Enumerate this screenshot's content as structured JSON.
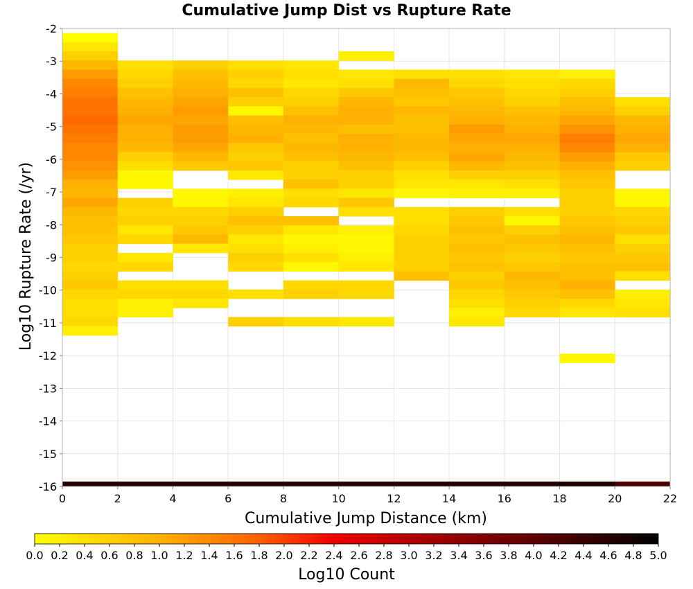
{
  "chart_data": {
    "type": "heatmap",
    "title": "Cumulative Jump Dist vs Rupture Rate",
    "xlabel": "Cumulative Jump Distance (km)",
    "ylabel": "Log10 Rupture Rate (/yr)",
    "colorbar_label": "Log10 Count",
    "xlim": [
      0,
      22
    ],
    "ylim": [
      -16,
      -2
    ],
    "x_ticks": [
      "0",
      "2",
      "4",
      "6",
      "8",
      "10",
      "12",
      "14",
      "16",
      "18",
      "20",
      "22"
    ],
    "y_ticks": [
      "-2",
      "-3",
      "-4",
      "-5",
      "-6",
      "-7",
      "-8",
      "-9",
      "-10",
      "-11",
      "-12",
      "-13",
      "-14",
      "-15",
      "-16"
    ],
    "colorbar_ticks": [
      "0.0",
      "0.2",
      "0.4",
      "0.6",
      "0.8",
      "1.0",
      "1.2",
      "1.4",
      "1.6",
      "1.8",
      "2.0",
      "2.2",
      "2.4",
      "2.6",
      "2.8",
      "3.0",
      "3.2",
      "3.4",
      "3.6",
      "3.8",
      "4.0",
      "4.2",
      "4.4",
      "4.6",
      "4.8",
      "5.0"
    ],
    "zlim": [
      0,
      5
    ],
    "grid": true,
    "x_bin_width": 2,
    "y_bin_height": 0.28,
    "columns": [
      {
        "x0": 0,
        "cells": [
          [
            -2.42,
            0.0
          ],
          [
            -2.7,
            0.3
          ],
          [
            -2.98,
            0.6
          ],
          [
            -3.26,
            0.9
          ],
          [
            -3.54,
            1.2
          ],
          [
            -3.82,
            1.4
          ],
          [
            -4.1,
            1.5
          ],
          [
            -4.38,
            1.6
          ],
          [
            -4.66,
            1.6
          ],
          [
            -4.94,
            1.7
          ],
          [
            -5.22,
            1.6
          ],
          [
            -5.5,
            1.5
          ],
          [
            -5.78,
            1.4
          ],
          [
            -6.06,
            1.4
          ],
          [
            -6.34,
            1.3
          ],
          [
            -6.62,
            1.2
          ],
          [
            -6.9,
            1.0
          ],
          [
            -7.18,
            0.9
          ],
          [
            -7.46,
            1.1
          ],
          [
            -7.74,
            0.9
          ],
          [
            -8.02,
            0.8
          ],
          [
            -8.3,
            0.8
          ],
          [
            -8.58,
            0.7
          ],
          [
            -8.86,
            0.6
          ],
          [
            -9.14,
            0.6
          ],
          [
            -9.42,
            0.5
          ],
          [
            -9.7,
            0.6
          ],
          [
            -9.98,
            0.7
          ],
          [
            -10.26,
            0.5
          ],
          [
            -10.54,
            0.4
          ],
          [
            -10.82,
            0.4
          ],
          [
            -11.1,
            0.5
          ],
          [
            -11.38,
            0.2
          ]
        ]
      },
      {
        "x0": 2,
        "cells": [
          [
            -3.26,
            0.4
          ],
          [
            -3.54,
            0.5
          ],
          [
            -3.82,
            0.6
          ],
          [
            -4.1,
            0.8
          ],
          [
            -4.38,
            0.9
          ],
          [
            -4.66,
            1.0
          ],
          [
            -4.94,
            1.1
          ],
          [
            -5.22,
            1.0
          ],
          [
            -5.5,
            1.0
          ],
          [
            -5.78,
            0.9
          ],
          [
            -6.06,
            0.6
          ],
          [
            -6.34,
            0.4
          ],
          [
            -6.62,
            0.1
          ],
          [
            -6.9,
            0.1
          ],
          [
            -7.46,
            0.6
          ],
          [
            -7.74,
            0.5
          ],
          [
            -8.02,
            0.6
          ],
          [
            -8.3,
            0.3
          ],
          [
            -8.58,
            0.5
          ],
          [
            -9.14,
            0.3
          ],
          [
            -9.42,
            0.5
          ],
          [
            -9.98,
            0.4
          ],
          [
            -10.26,
            0.5
          ],
          [
            -10.54,
            0.2
          ],
          [
            -10.82,
            0.2
          ]
        ]
      },
      {
        "x0": 4,
        "cells": [
          [
            -3.26,
            0.6
          ],
          [
            -3.54,
            0.8
          ],
          [
            -3.82,
            0.9
          ],
          [
            -4.1,
            1.0
          ],
          [
            -4.38,
            1.1
          ],
          [
            -4.66,
            1.2
          ],
          [
            -4.94,
            1.1
          ],
          [
            -5.22,
            1.2
          ],
          [
            -5.5,
            1.2
          ],
          [
            -5.78,
            1.1
          ],
          [
            -6.06,
            0.9
          ],
          [
            -6.34,
            0.7
          ],
          [
            -7.18,
            0.1
          ],
          [
            -7.46,
            0.1
          ],
          [
            -7.74,
            0.5
          ],
          [
            -8.02,
            0.6
          ],
          [
            -8.3,
            0.7
          ],
          [
            -8.58,
            0.9
          ],
          [
            -8.86,
            0.3
          ],
          [
            -9.98,
            0.4
          ],
          [
            -10.26,
            0.5
          ],
          [
            -10.54,
            0.3
          ]
        ]
      },
      {
        "x0": 6,
        "cells": [
          [
            -3.26,
            0.4
          ],
          [
            -3.54,
            0.6
          ],
          [
            -3.82,
            0.5
          ],
          [
            -4.1,
            0.8
          ],
          [
            -4.38,
            0.6
          ],
          [
            -4.66,
            0.1
          ],
          [
            -4.94,
            0.8
          ],
          [
            -5.22,
            0.9
          ],
          [
            -5.5,
            1.0
          ],
          [
            -5.78,
            0.7
          ],
          [
            -6.06,
            0.6
          ],
          [
            -6.34,
            0.7
          ],
          [
            -6.62,
            0.3
          ],
          [
            -7.18,
            0.2
          ],
          [
            -7.46,
            0.3
          ],
          [
            -7.74,
            0.6
          ],
          [
            -8.02,
            0.8
          ],
          [
            -8.3,
            0.6
          ],
          [
            -8.58,
            0.3
          ],
          [
            -8.86,
            0.4
          ],
          [
            -9.14,
            0.6
          ],
          [
            -9.42,
            0.5
          ],
          [
            -10.26,
            0.4
          ],
          [
            -11.1,
            0.6
          ]
        ]
      },
      {
        "x0": 8,
        "cells": [
          [
            -3.26,
            0.3
          ],
          [
            -3.54,
            0.4
          ],
          [
            -3.82,
            0.3
          ],
          [
            -4.1,
            0.5
          ],
          [
            -4.38,
            0.6
          ],
          [
            -4.66,
            0.8
          ],
          [
            -4.94,
            1.0
          ],
          [
            -5.22,
            0.9
          ],
          [
            -5.5,
            0.8
          ],
          [
            -5.78,
            0.9
          ],
          [
            -6.06,
            0.8
          ],
          [
            -6.34,
            0.6
          ],
          [
            -6.62,
            0.6
          ],
          [
            -6.9,
            0.8
          ],
          [
            -7.18,
            0.4
          ],
          [
            -7.46,
            0.5
          ],
          [
            -8.02,
            0.8
          ],
          [
            -8.3,
            0.3
          ],
          [
            -8.58,
            0.1
          ],
          [
            -8.86,
            0.2
          ],
          [
            -9.14,
            0.4
          ],
          [
            -9.42,
            0.1
          ],
          [
            -9.98,
            0.5
          ],
          [
            -10.26,
            0.6
          ],
          [
            -11.1,
            0.4
          ]
        ]
      },
      {
        "x0": 10,
        "cells": [
          [
            -2.98,
            0.2
          ],
          [
            -3.54,
            0.3
          ],
          [
            -3.82,
            0.4
          ],
          [
            -4.1,
            0.7
          ],
          [
            -4.38,
            0.9
          ],
          [
            -4.66,
            1.0
          ],
          [
            -4.94,
            1.0
          ],
          [
            -5.22,
            0.8
          ],
          [
            -5.5,
            1.0
          ],
          [
            -5.78,
            1.0
          ],
          [
            -6.06,
            0.9
          ],
          [
            -6.34,
            0.8
          ],
          [
            -6.62,
            0.6
          ],
          [
            -6.9,
            0.6
          ],
          [
            -7.18,
            0.3
          ],
          [
            -7.46,
            0.7
          ],
          [
            -7.74,
            0.4
          ],
          [
            -8.3,
            0.2
          ],
          [
            -8.58,
            0.1
          ],
          [
            -8.86,
            0.1
          ],
          [
            -9.14,
            0.2
          ],
          [
            -9.42,
            0.3
          ],
          [
            -9.98,
            0.5
          ],
          [
            -10.26,
            0.5
          ],
          [
            -11.1,
            0.3
          ]
        ]
      },
      {
        "x0": 12,
        "cells": [
          [
            -3.54,
            0.4
          ],
          [
            -3.82,
            0.9
          ],
          [
            -4.1,
            0.8
          ],
          [
            -4.38,
            0.7
          ],
          [
            -4.66,
            0.9
          ],
          [
            -4.94,
            0.8
          ],
          [
            -5.22,
            0.8
          ],
          [
            -5.5,
            0.9
          ],
          [
            -5.78,
            0.9
          ],
          [
            -6.06,
            0.8
          ],
          [
            -6.34,
            0.6
          ],
          [
            -6.62,
            0.4
          ],
          [
            -6.9,
            0.3
          ],
          [
            -7.18,
            0.1
          ],
          [
            -7.74,
            0.4
          ],
          [
            -8.02,
            0.4
          ],
          [
            -8.3,
            0.5
          ],
          [
            -8.58,
            0.6
          ],
          [
            -8.86,
            0.6
          ],
          [
            -9.14,
            0.6
          ],
          [
            -9.42,
            0.6
          ],
          [
            -9.7,
            0.8
          ]
        ]
      },
      {
        "x0": 14,
        "cells": [
          [
            -3.54,
            0.4
          ],
          [
            -3.82,
            0.5
          ],
          [
            -4.1,
            0.7
          ],
          [
            -4.38,
            0.8
          ],
          [
            -4.66,
            0.9
          ],
          [
            -4.94,
            1.0
          ],
          [
            -5.22,
            1.2
          ],
          [
            -5.5,
            1.1
          ],
          [
            -5.78,
            1.0
          ],
          [
            -6.06,
            1.1
          ],
          [
            -6.34,
            0.9
          ],
          [
            -6.62,
            0.6
          ],
          [
            -6.9,
            0.3
          ],
          [
            -7.18,
            0.2
          ],
          [
            -7.74,
            0.6
          ],
          [
            -8.02,
            0.7
          ],
          [
            -8.3,
            0.8
          ],
          [
            -8.58,
            0.7
          ],
          [
            -8.86,
            0.8
          ],
          [
            -9.14,
            0.7
          ],
          [
            -9.42,
            0.8
          ],
          [
            -9.7,
            0.6
          ],
          [
            -9.98,
            0.7
          ],
          [
            -10.26,
            0.5
          ],
          [
            -10.54,
            0.4
          ],
          [
            -10.82,
            0.2
          ],
          [
            -11.1,
            0.3
          ]
        ]
      },
      {
        "x0": 16,
        "cells": [
          [
            -3.54,
            0.3
          ],
          [
            -3.82,
            0.4
          ],
          [
            -4.1,
            0.5
          ],
          [
            -4.38,
            0.6
          ],
          [
            -4.66,
            0.8
          ],
          [
            -4.94,
            0.9
          ],
          [
            -5.22,
            1.0
          ],
          [
            -5.5,
            1.1
          ],
          [
            -5.78,
            1.0
          ],
          [
            -6.06,
            0.9
          ],
          [
            -6.34,
            0.8
          ],
          [
            -6.62,
            0.6
          ],
          [
            -6.9,
            0.4
          ],
          [
            -7.18,
            0.2
          ],
          [
            -7.74,
            0.4
          ],
          [
            -8.02,
            0.1
          ],
          [
            -8.3,
            0.6
          ],
          [
            -8.58,
            0.8
          ],
          [
            -8.86,
            0.7
          ],
          [
            -9.14,
            0.6
          ],
          [
            -9.42,
            0.7
          ],
          [
            -9.7,
            0.9
          ],
          [
            -9.98,
            0.8
          ],
          [
            -10.26,
            0.7
          ],
          [
            -10.54,
            0.6
          ],
          [
            -10.82,
            0.5
          ]
        ]
      },
      {
        "x0": 18,
        "cells": [
          [
            -3.54,
            0.2
          ],
          [
            -3.82,
            0.5
          ],
          [
            -4.1,
            0.6
          ],
          [
            -4.38,
            0.8
          ],
          [
            -4.66,
            0.9
          ],
          [
            -4.94,
            1.1
          ],
          [
            -5.22,
            1.3
          ],
          [
            -5.5,
            1.5
          ],
          [
            -5.78,
            1.4
          ],
          [
            -6.06,
            1.2
          ],
          [
            -6.34,
            1.0
          ],
          [
            -6.62,
            0.8
          ],
          [
            -6.9,
            0.7
          ],
          [
            -7.18,
            0.6
          ],
          [
            -7.46,
            0.6
          ],
          [
            -7.74,
            0.6
          ],
          [
            -8.02,
            0.7
          ],
          [
            -8.3,
            0.8
          ],
          [
            -8.58,
            0.9
          ],
          [
            -8.86,
            0.8
          ],
          [
            -9.14,
            0.7
          ],
          [
            -9.42,
            0.8
          ],
          [
            -9.7,
            0.8
          ],
          [
            -9.98,
            1.0
          ],
          [
            -10.26,
            0.8
          ],
          [
            -10.54,
            0.5
          ],
          [
            -10.82,
            0.3
          ],
          [
            -12.22,
            0.1
          ]
        ]
      },
      {
        "x0": 20,
        "cells": [
          [
            -4.38,
            0.4
          ],
          [
            -4.66,
            0.6
          ],
          [
            -4.94,
            0.9
          ],
          [
            -5.22,
            1.0
          ],
          [
            -5.5,
            1.1
          ],
          [
            -5.78,
            1.0
          ],
          [
            -6.06,
            0.7
          ],
          [
            -6.34,
            0.6
          ],
          [
            -7.18,
            0.1
          ],
          [
            -7.46,
            0.1
          ],
          [
            -7.74,
            0.5
          ],
          [
            -8.02,
            0.6
          ],
          [
            -8.3,
            0.7
          ],
          [
            -8.58,
            0.4
          ],
          [
            -8.86,
            0.6
          ],
          [
            -9.14,
            0.7
          ],
          [
            -9.42,
            0.8
          ],
          [
            -9.7,
            0.4
          ],
          [
            -10.26,
            0.2
          ],
          [
            -10.54,
            0.3
          ],
          [
            -10.82,
            0.4
          ]
        ]
      }
    ],
    "bottom_row": {
      "y0": -16.0,
      "y1": -15.85,
      "values": [
        4.6,
        4.6,
        4.6,
        4.6,
        4.6,
        4.6,
        4.6,
        4.6,
        4.6,
        4.7,
        4.2
      ]
    }
  }
}
